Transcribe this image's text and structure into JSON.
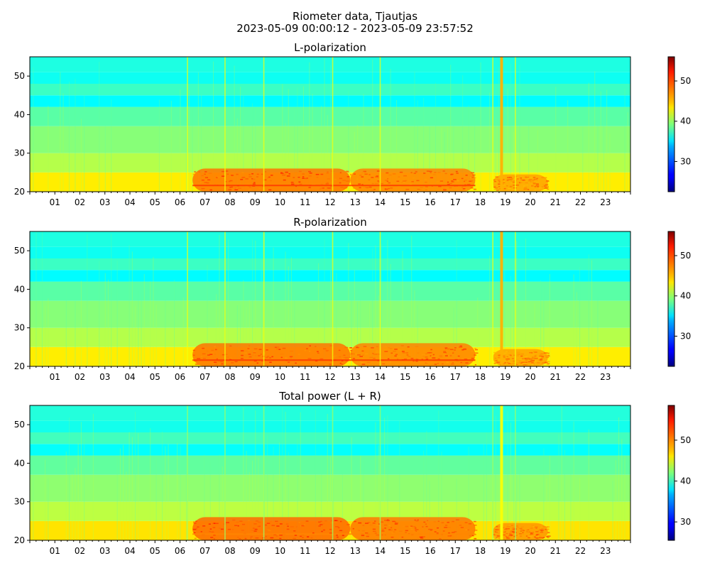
{
  "figure": {
    "title_line1": "Riometer data, Tjautjas",
    "title_line2": "2023-05-09 00:00:12 - 2023-05-09 23:57:52"
  },
  "chart_data": [
    {
      "type": "heatmap",
      "title": "L-polarization",
      "xlabel": "",
      "ylabel": "",
      "x_tick_labels": [
        "01",
        "02",
        "03",
        "04",
        "05",
        "06",
        "07",
        "08",
        "09",
        "10",
        "11",
        "12",
        "13",
        "14",
        "15",
        "16",
        "17",
        "18",
        "19",
        "20",
        "21",
        "22",
        "23"
      ],
      "x_range_hours": [
        0,
        24
      ],
      "y_ticks": [
        20,
        30,
        40,
        50
      ],
      "y_range": [
        20,
        55
      ],
      "colorbar": {
        "ticks": [
          30,
          40,
          50
        ],
        "range": [
          22.5,
          56
        ],
        "colormap": "jet"
      },
      "features": {
        "background_band_values": [
          {
            "y_from": 20,
            "y_to": 25,
            "value": 44
          },
          {
            "y_from": 25,
            "y_to": 30,
            "value": 41
          },
          {
            "y_from": 30,
            "y_to": 37,
            "value": 39.5
          },
          {
            "y_from": 37,
            "y_to": 42,
            "value": 38
          },
          {
            "y_from": 42,
            "y_to": 45,
            "value": 35
          },
          {
            "y_from": 45,
            "y_to": 48,
            "value": 37
          },
          {
            "y_from": 48,
            "y_to": 51,
            "value": 35.5
          },
          {
            "y_from": 51,
            "y_to": 55,
            "value": 36
          }
        ],
        "enhancement_periods_hours": [
          [
            6.5,
            12.8
          ],
          [
            12.8,
            17.8
          ],
          [
            18.5,
            20.7
          ]
        ],
        "spikes_hours": [
          6.3,
          7.8,
          9.35,
          12.1,
          14.0,
          18.5,
          18.85,
          19.4
        ]
      }
    },
    {
      "type": "heatmap",
      "title": "R-polarization",
      "xlabel": "",
      "ylabel": "",
      "x_tick_labels": [
        "01",
        "02",
        "03",
        "04",
        "05",
        "06",
        "07",
        "08",
        "09",
        "10",
        "11",
        "12",
        "13",
        "14",
        "15",
        "16",
        "17",
        "18",
        "19",
        "20",
        "21",
        "22",
        "23"
      ],
      "x_range_hours": [
        0,
        24
      ],
      "y_ticks": [
        20,
        30,
        40,
        50
      ],
      "y_range": [
        20,
        55
      ],
      "colorbar": {
        "ticks": [
          30,
          40,
          50
        ],
        "range": [
          22.5,
          56
        ],
        "colormap": "jet"
      },
      "features": {
        "background_band_values": [
          {
            "y_from": 20,
            "y_to": 25,
            "value": 44
          },
          {
            "y_from": 25,
            "y_to": 30,
            "value": 41
          },
          {
            "y_from": 30,
            "y_to": 37,
            "value": 39.5
          },
          {
            "y_from": 37,
            "y_to": 42,
            "value": 38
          },
          {
            "y_from": 42,
            "y_to": 45,
            "value": 35
          },
          {
            "y_from": 45,
            "y_to": 48,
            "value": 37
          },
          {
            "y_from": 48,
            "y_to": 51,
            "value": 35.5
          },
          {
            "y_from": 51,
            "y_to": 55,
            "value": 36
          }
        ],
        "enhancement_periods_hours": [
          [
            6.5,
            12.8
          ],
          [
            12.8,
            17.8
          ],
          [
            18.5,
            20.7
          ]
        ],
        "spikes_hours": [
          6.3,
          7.8,
          9.35,
          12.1,
          14.0,
          18.5,
          18.85,
          19.4
        ]
      }
    },
    {
      "type": "heatmap",
      "title": "Total power (L + R)",
      "xlabel": "",
      "ylabel": "",
      "x_tick_labels": [
        "01",
        "02",
        "03",
        "04",
        "05",
        "06",
        "07",
        "08",
        "09",
        "10",
        "11",
        "12",
        "13",
        "14",
        "15",
        "16",
        "17",
        "18",
        "19",
        "20",
        "21",
        "22",
        "23"
      ],
      "x_range_hours": [
        0,
        24
      ],
      "y_ticks": [
        20,
        30,
        40,
        50
      ],
      "y_range": [
        20,
        55
      ],
      "colorbar": {
        "ticks": [
          30,
          40,
          50
        ],
        "range": [
          25.5,
          58.5
        ],
        "colormap": "jet"
      },
      "features": {
        "background_band_values": [
          {
            "y_from": 20,
            "y_to": 25,
            "value": 47
          },
          {
            "y_from": 25,
            "y_to": 30,
            "value": 44
          },
          {
            "y_from": 30,
            "y_to": 37,
            "value": 42.5
          },
          {
            "y_from": 37,
            "y_to": 42,
            "value": 41
          },
          {
            "y_from": 42,
            "y_to": 45,
            "value": 38
          },
          {
            "y_from": 45,
            "y_to": 48,
            "value": 40
          },
          {
            "y_from": 48,
            "y_to": 51,
            "value": 38.5
          },
          {
            "y_from": 51,
            "y_to": 55,
            "value": 39
          }
        ],
        "enhancement_periods_hours": [
          [
            6.5,
            12.8
          ],
          [
            12.8,
            17.8
          ],
          [
            18.5,
            20.7
          ]
        ],
        "spikes_hours": [
          6.3,
          7.8,
          9.35,
          12.1,
          14.0,
          18.5,
          18.85,
          19.4
        ]
      }
    }
  ]
}
